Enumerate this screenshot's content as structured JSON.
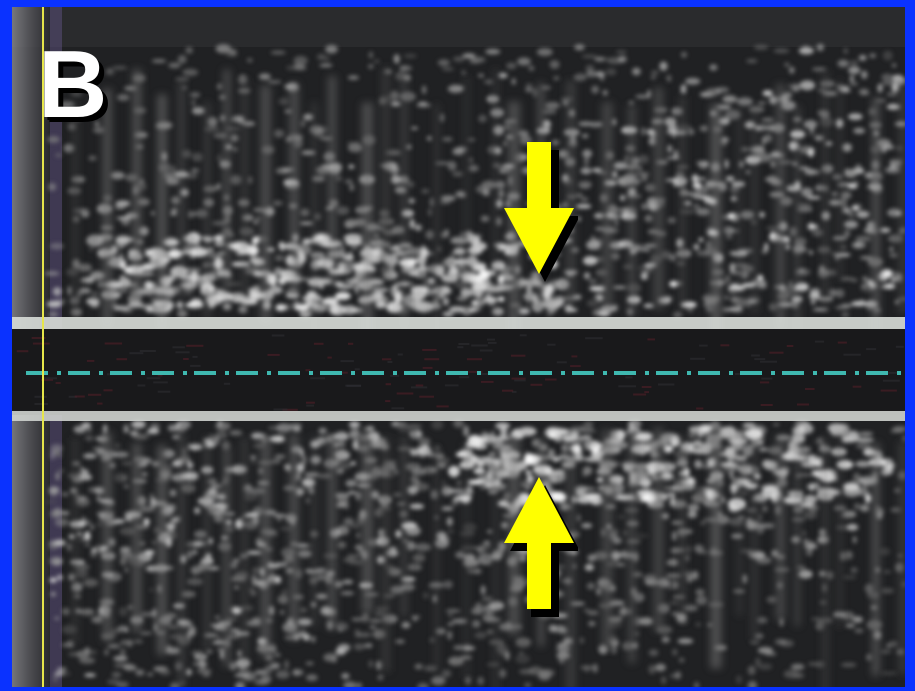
{
  "panel_label": "B",
  "colors": {
    "frame_border": "#0a32ff",
    "arrow_fill": "#ffff00",
    "arrow_shadow": "#000000",
    "wall_line": "#d8dcd8",
    "lumen_dash": "#3fb8b0",
    "calibration_line": "#e6e64a"
  },
  "arrows": [
    {
      "name": "arrow-down-icon",
      "direction": "down"
    },
    {
      "name": "arrow-up-icon",
      "direction": "up"
    }
  ]
}
